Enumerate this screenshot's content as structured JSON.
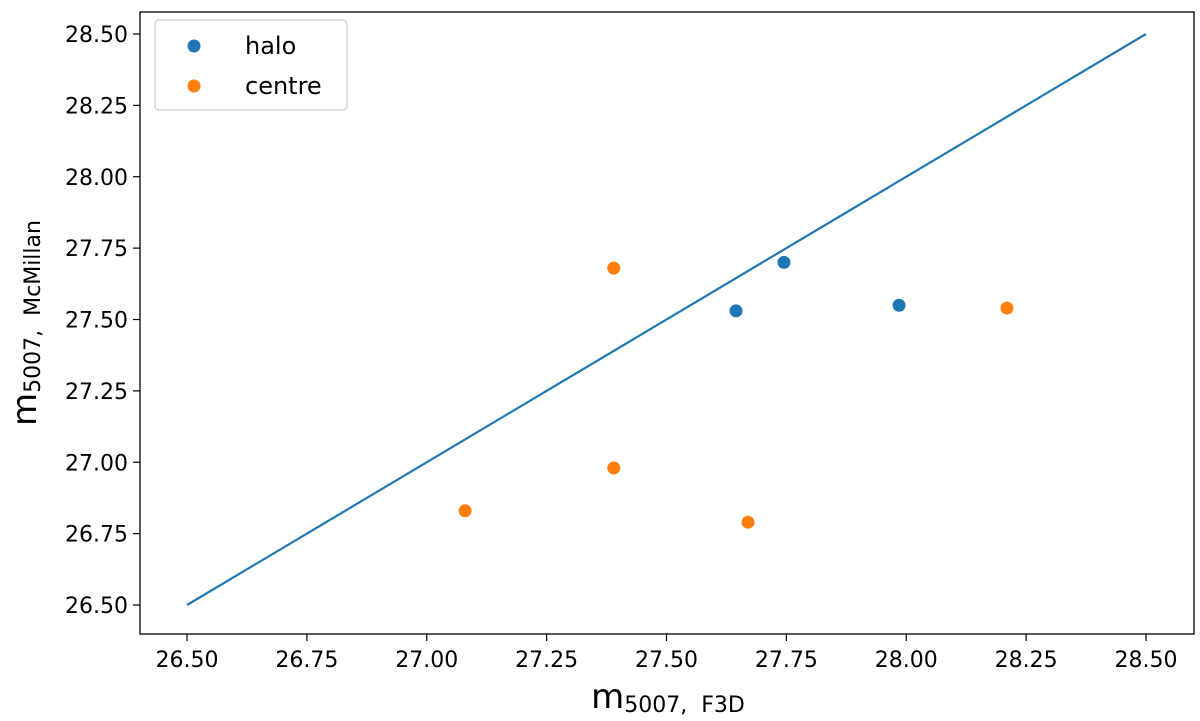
{
  "chart_data": {
    "type": "scatter",
    "title": "",
    "xlabel": {
      "main": "m",
      "sub": "5007,  F3D"
    },
    "ylabel": {
      "main": "m",
      "sub": "5007,  McMillan"
    },
    "xlim": [
      26.5,
      28.5
    ],
    "ylim": [
      26.5,
      28.5
    ],
    "xticks": [
      "26.50",
      "26.75",
      "27.00",
      "27.25",
      "27.50",
      "27.75",
      "28.00",
      "28.25",
      "28.50"
    ],
    "yticks": [
      "26.50",
      "26.75",
      "27.00",
      "27.25",
      "27.50",
      "27.75",
      "28.00",
      "28.25",
      "28.50"
    ],
    "grid": false,
    "legend_position": "top-left",
    "line": {
      "x": [
        26.5,
        28.5
      ],
      "y": [
        26.5,
        28.5
      ],
      "color": "#1f77b4"
    },
    "series": [
      {
        "name": "halo",
        "color": "#1f77b4",
        "points": [
          {
            "x": 27.645,
            "y": 27.53
          },
          {
            "x": 27.745,
            "y": 27.7
          },
          {
            "x": 27.985,
            "y": 27.55
          }
        ]
      },
      {
        "name": "centre",
        "color": "#ff7f0e",
        "points": [
          {
            "x": 27.08,
            "y": 26.83
          },
          {
            "x": 27.39,
            "y": 27.68
          },
          {
            "x": 27.39,
            "y": 26.98
          },
          {
            "x": 27.67,
            "y": 26.79
          },
          {
            "x": 28.21,
            "y": 27.54
          }
        ]
      }
    ]
  }
}
